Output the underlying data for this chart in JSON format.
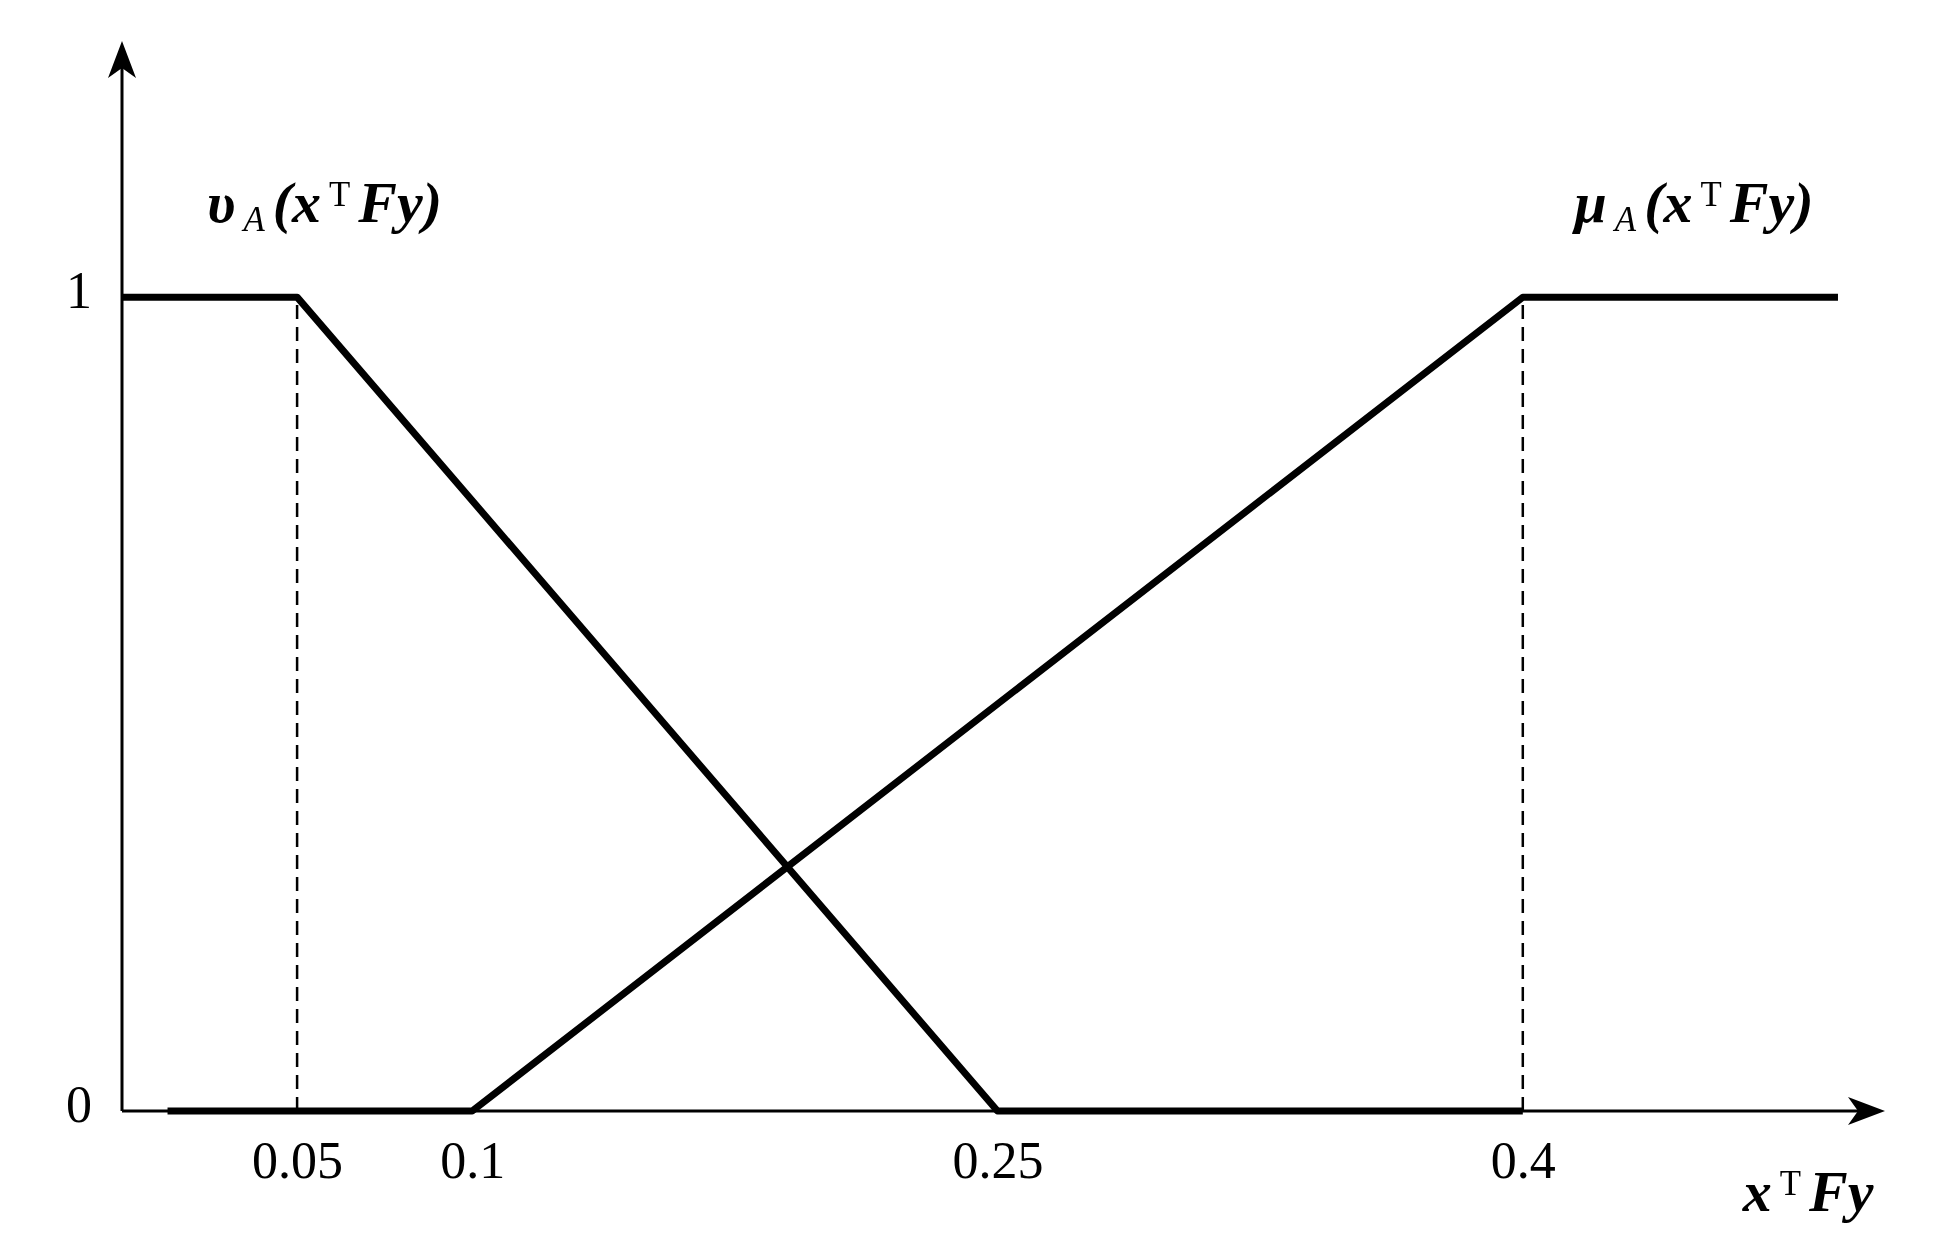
{
  "chart_data": {
    "type": "line",
    "xlabel": "x$^{T}$Fy",
    "xlim": [
      0,
      0.5
    ],
    "xticks": [
      0.05,
      0.1,
      0.25,
      0.4
    ],
    "ylim": [
      0,
      1.3
    ],
    "yticks": [
      0,
      1
    ],
    "grid": false,
    "series": [
      {
        "name": "υ$_{A}$(x$^{T}$Fy)",
        "color": "#000000",
        "x": [
          0,
          0.05,
          0.25,
          0.4
        ],
        "values": [
          1,
          1,
          0,
          0
        ]
      },
      {
        "name": "μ$_{A}$(x$^{T}$Fy)",
        "color": "#000000",
        "x": [
          0.013,
          0.1,
          0.4,
          0.49
        ],
        "values": [
          0,
          0,
          1,
          1
        ]
      }
    ],
    "ref_lines": [
      {
        "axis": "x",
        "value": 0.05,
        "line_style": "dashed"
      },
      {
        "axis": "x",
        "value": 0.4,
        "line_style": "dashed"
      }
    ]
  }
}
